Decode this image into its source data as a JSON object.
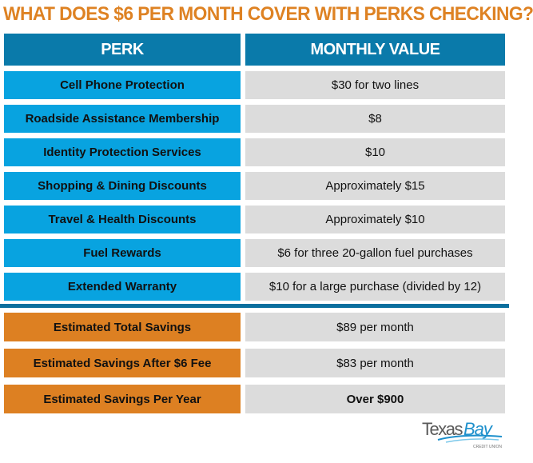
{
  "title": "WHAT DOES $6 PER MONTH COVER WITH PERKS CHECKING?",
  "header": {
    "perk": "PERK",
    "value": "MONTHLY VALUE"
  },
  "perks": [
    {
      "perk": "Cell Phone Protection",
      "value": "$30 for two lines"
    },
    {
      "perk": "Roadside Assistance Membership",
      "value": "$8"
    },
    {
      "perk": "Identity Protection Services",
      "value": "$10"
    },
    {
      "perk": "Shopping & Dining Discounts",
      "value": "Approximately $15"
    },
    {
      "perk": "Travel & Health Discounts",
      "value": "Approximately $10"
    },
    {
      "perk": "Fuel Rewards",
      "value": "$6 for three 20-gallon fuel purchases"
    },
    {
      "perk": "Extended Warranty",
      "value": "$10 for a large purchase (divided by 12)"
    }
  ],
  "summary": [
    {
      "label": "Estimated Total Savings",
      "value": "$89 per month"
    },
    {
      "label": "Estimated Savings After $6 Fee",
      "value": "$83 per month"
    },
    {
      "label": "Estimated Savings Per Year",
      "value": "Over $900"
    }
  ],
  "logo": {
    "name": "Texas Bay",
    "sub": "CREDIT UNION"
  },
  "colors": {
    "title": "#de8223",
    "header": "#0a7aaa",
    "perk": "#08a3e0",
    "summary": "#dd8022",
    "value_bg": "#dcdcdc"
  }
}
